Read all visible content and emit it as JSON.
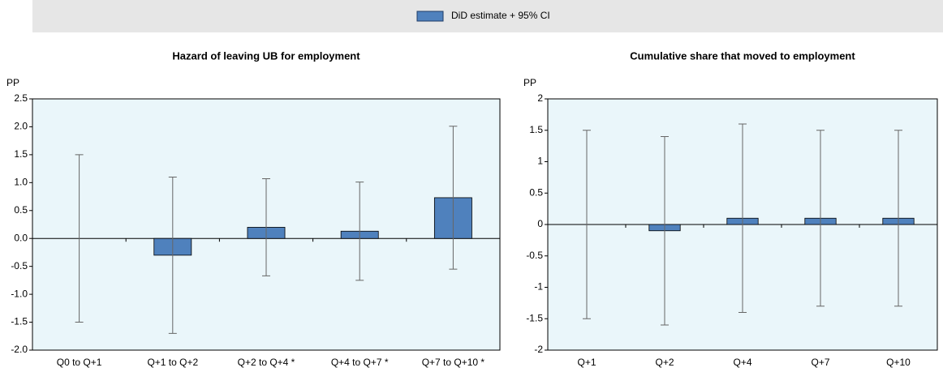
{
  "chart_data": [
    {
      "type": "bar",
      "title": "Hazard of leaving UB for employment",
      "y_label": "PP",
      "categories": [
        "Q0 to Q+1",
        "Q+1 to Q+2",
        "Q+2 to Q+4 *",
        "Q+4 to Q+7 *",
        "Q+7 to Q+10 *"
      ],
      "series": [
        {
          "name": "DiD estimate + 95% CI",
          "color": "#4f81bd",
          "values": [
            0,
            -0.3,
            0.2,
            0.13,
            0.73
          ],
          "errors": [
            1.5,
            1.4,
            0.87,
            0.88,
            1.28
          ]
        }
      ],
      "ylim": [
        -2,
        2.5
      ],
      "yticks": [
        2.5,
        {
          "value": 2,
          "label": "2.0"
        },
        1.5,
        {
          "value": 1,
          "label": "1.0"
        },
        0.5,
        {
          "value": 0,
          "label": "0.0"
        },
        -0.5,
        {
          "value": -1,
          "label": "-1.0"
        },
        -1.5,
        {
          "value": -2,
          "label": "-2.0"
        }
      ]
    },
    {
      "type": "bar",
      "title": "Cumulative share that moved to employment",
      "y_label": "PP",
      "categories": [
        "Q+1",
        "Q+2",
        "Q+4",
        "Q+7",
        "Q+10"
      ],
      "series": [
        {
          "color": "#4f81bd",
          "values": [
            0,
            -0.1,
            0.1,
            0.1,
            0.1
          ],
          "errors": [
            1.5,
            1.5,
            1.5,
            1.4,
            1.4
          ]
        }
      ],
      "ylim": [
        -2,
        2
      ],
      "yticks": [
        2,
        1.5,
        1,
        0.5,
        0,
        -0.5,
        -1,
        -1.5,
        -2
      ]
    }
  ]
}
